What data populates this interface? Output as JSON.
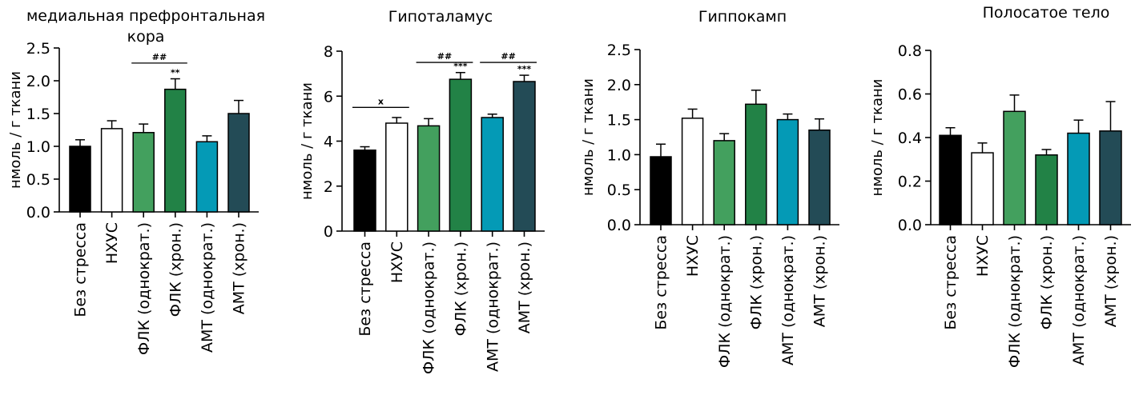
{
  "colors": {
    "Без стресса": "#000000",
    "НХУС": "#ffffff",
    "ФЛК (однократ.)": "#43a05e",
    "ФЛК (хрон.)": "#228246",
    "АМТ (однократ.)": "#049ab6",
    "АМТ (хрон.)": "#234b56"
  },
  "chart_data": [
    {
      "type": "bar",
      "title": "медиальная префронтальная кора",
      "title_lines": [
        "медиальная префронтальная",
        "кора"
      ],
      "ylabel": "нмоль / г ткани",
      "ylim": [
        0,
        2.5
      ],
      "yticks": [
        "0.0",
        "0.5",
        "1.0",
        "1.5",
        "2.0",
        "2.5"
      ],
      "categories": [
        "Без стресса",
        "НХУС",
        "ФЛК (однократ.)",
        "ФЛК (хрон.)",
        "АМТ (однократ.)",
        "АМТ (хрон.)"
      ],
      "values": [
        1.0,
        1.27,
        1.21,
        1.87,
        1.07,
        1.5
      ],
      "errors": [
        0.1,
        0.12,
        0.13,
        0.16,
        0.09,
        0.2
      ],
      "annotations": [
        {
          "type": "star",
          "index": 3,
          "text": "**"
        },
        {
          "type": "bracket",
          "from": 2,
          "to": 3,
          "text": "##",
          "y": 2.27
        }
      ]
    },
    {
      "type": "bar",
      "title": "Гипоталамус",
      "title_lines": [
        "Гипоталамус"
      ],
      "ylabel": "нмоль / г ткани",
      "ylim": [
        0,
        8
      ],
      "yticks": [
        "0",
        "2",
        "4",
        "6",
        "8"
      ],
      "categories": [
        "Без стресса",
        "НХУС",
        "ФЛК (однократ.)",
        "ФЛК (хрон.)",
        "АМТ (однократ.)",
        "АМТ (хрон.)"
      ],
      "values": [
        3.6,
        4.8,
        4.68,
        6.75,
        5.05,
        6.65
      ],
      "errors": [
        0.15,
        0.25,
        0.32,
        0.3,
        0.15,
        0.28
      ],
      "annotations": [
        {
          "type": "bracket",
          "from": 0,
          "to": 1,
          "text": "x",
          "y": 5.5
        },
        {
          "type": "bracket",
          "from": 2,
          "to": 3,
          "text": "##",
          "y": 7.5
        },
        {
          "type": "bracket",
          "from": 4,
          "to": 5,
          "text": "##",
          "y": 7.5
        },
        {
          "type": "star",
          "index": 3,
          "text": "***"
        },
        {
          "type": "star",
          "index": 5,
          "text": "***"
        }
      ]
    },
    {
      "type": "bar",
      "title": "Гиппокамп",
      "title_lines": [
        "Гиппокамп"
      ],
      "ylabel": "нмоль / г ткани",
      "ylim": [
        0,
        2.5
      ],
      "yticks": [
        "0.0",
        "0.5",
        "1.0",
        "1.5",
        "2.0",
        "2.5"
      ],
      "categories": [
        "Без стресса",
        "НХУС",
        "ФЛК (однократ.)",
        "ФЛК (хрон.)",
        "АМТ (однократ.)",
        "АМТ (хрон.)"
      ],
      "values": [
        0.97,
        1.52,
        1.2,
        1.72,
        1.5,
        1.35
      ],
      "errors": [
        0.18,
        0.13,
        0.1,
        0.2,
        0.08,
        0.16
      ],
      "annotations": []
    },
    {
      "type": "bar",
      "title": "Полосатое тело",
      "title_lines": [
        "Полосатое тело"
      ],
      "ylabel": "нмоль / г ткани",
      "ylim": [
        0,
        0.8
      ],
      "yticks": [
        "0.0",
        "0.2",
        "0.4",
        "0.6",
        "0.8"
      ],
      "categories": [
        "Без стресса",
        "НХУС",
        "ФЛК (однократ.)",
        "ФЛК (хрон.)",
        "АМТ (однократ.)",
        "АМТ (хрон.)"
      ],
      "values": [
        0.41,
        0.33,
        0.52,
        0.32,
        0.42,
        0.43
      ],
      "errors": [
        0.035,
        0.045,
        0.075,
        0.025,
        0.06,
        0.135
      ],
      "annotations": []
    }
  ]
}
